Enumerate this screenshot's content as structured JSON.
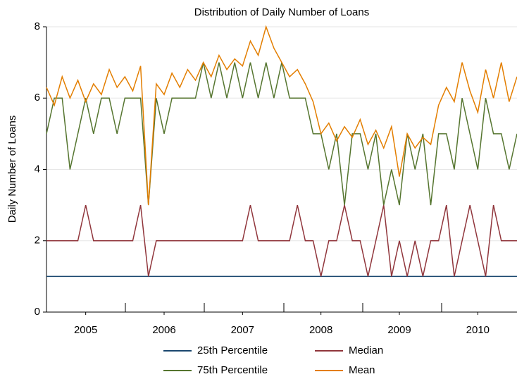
{
  "chart_data": {
    "type": "line",
    "title": "Distribution of Daily Number of Loans",
    "y_label": "Daily Number of Loans",
    "x": [
      2005.0,
      2005.1,
      2005.2,
      2005.3,
      2005.4,
      2005.5,
      2005.6,
      2005.7,
      2005.8,
      2005.9,
      2006.0,
      2006.1,
      2006.2,
      2006.3,
      2006.4,
      2006.5,
      2006.6,
      2006.7,
      2006.8,
      2006.9,
      2007.0,
      2007.1,
      2007.2,
      2007.3,
      2007.4,
      2007.5,
      2007.6,
      2007.7,
      2007.8,
      2007.9,
      2008.0,
      2008.1,
      2008.2,
      2008.3,
      2008.4,
      2008.5,
      2008.6,
      2008.7,
      2008.8,
      2008.9,
      2009.0,
      2009.1,
      2009.2,
      2009.3,
      2009.4,
      2009.5,
      2009.6,
      2009.7,
      2009.8,
      2009.9,
      2010.0,
      2010.1,
      2010.2,
      2010.3,
      2010.4,
      2010.5,
      2010.6,
      2010.7,
      2010.8,
      2010.9,
      2011.0
    ],
    "series": [
      {
        "name": "25th Percentile",
        "color": "#1a476f",
        "values": [
          1,
          1,
          1,
          1,
          1,
          1,
          1,
          1,
          1,
          1,
          1,
          1,
          1,
          1,
          1,
          1,
          1,
          1,
          1,
          1,
          1,
          1,
          1,
          1,
          1,
          1,
          1,
          1,
          1,
          1,
          1,
          1,
          1,
          1,
          1,
          1,
          1,
          1,
          1,
          1,
          1,
          1,
          1,
          1,
          1,
          1,
          1,
          1,
          1,
          1,
          1,
          1,
          1,
          1,
          1,
          1,
          1,
          1,
          1,
          1,
          1
        ]
      },
      {
        "name": "Median",
        "color": "#90353b",
        "values": [
          2,
          2,
          2,
          2,
          2,
          3,
          2,
          2,
          2,
          2,
          2,
          2,
          3,
          1,
          2,
          2,
          2,
          2,
          2,
          2,
          2,
          2,
          2,
          2,
          2,
          2,
          3,
          2,
          2,
          2,
          2,
          2,
          3,
          2,
          2,
          1,
          2,
          2,
          3,
          2,
          2,
          1,
          2,
          3,
          1,
          2,
          1,
          2,
          1,
          2,
          2,
          3,
          1,
          2,
          3,
          2,
          1,
          3,
          2,
          2,
          2
        ]
      },
      {
        "name": "75th Percentile",
        "color": "#55752f",
        "values": [
          5,
          6,
          6,
          4,
          5,
          6,
          5,
          6,
          6,
          5,
          6,
          6,
          6,
          3,
          6,
          5,
          6,
          6,
          6,
          6,
          7,
          6,
          7,
          6,
          7,
          6,
          7,
          6,
          7,
          6,
          7,
          6,
          6,
          6,
          5,
          5,
          4,
          5,
          3,
          5,
          5,
          4,
          5,
          3,
          4,
          3,
          5,
          4,
          5,
          3,
          5,
          5,
          4,
          6,
          5,
          4,
          6,
          5,
          5,
          4,
          5
        ]
      },
      {
        "name": "Mean",
        "color": "#e37e00",
        "values": [
          6.3,
          5.8,
          6.6,
          6.0,
          6.5,
          5.9,
          6.4,
          6.1,
          6.8,
          6.3,
          6.6,
          6.2,
          6.9,
          3.0,
          6.4,
          6.1,
          6.7,
          6.3,
          6.8,
          6.5,
          7.0,
          6.6,
          7.2,
          6.8,
          7.1,
          6.9,
          7.6,
          7.2,
          8.0,
          7.4,
          7.0,
          6.6,
          6.8,
          6.4,
          5.9,
          5.0,
          5.3,
          4.8,
          5.2,
          4.9,
          5.4,
          4.7,
          5.1,
          4.6,
          5.2,
          3.8,
          5.0,
          4.6,
          4.9,
          4.7,
          5.8,
          6.3,
          5.9,
          7.0,
          6.2,
          5.6,
          6.8,
          6.0,
          7.0,
          5.9,
          6.6
        ]
      }
    ],
    "xlim": [
      2005,
      2011
    ],
    "xticks": [
      {
        "value": 2005.5,
        "label": "2005"
      },
      {
        "value": 2006.5,
        "label": "2006"
      },
      {
        "value": 2007.5,
        "label": "2007"
      },
      {
        "value": 2008.5,
        "label": "2008"
      },
      {
        "value": 2009.5,
        "label": "2009"
      },
      {
        "value": 2010.5,
        "label": "2010"
      }
    ],
    "ylim": [
      0,
      8
    ],
    "yticks": [
      0,
      2,
      4,
      6,
      8
    ],
    "grid": true
  }
}
